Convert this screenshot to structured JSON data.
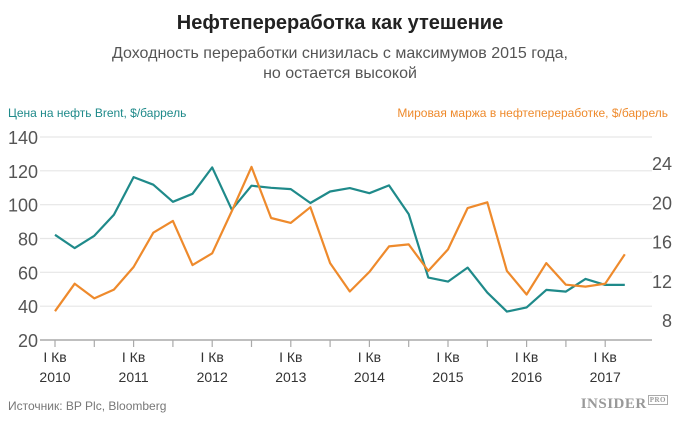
{
  "header": {
    "title": "Нефтепереработка как утешение",
    "subtitle_line1": "Доходность переработки снизилась с максимумов 2015 года,",
    "subtitle_line2": "но остается высокой"
  },
  "footer": {
    "source": "Источник: BP Plc, Bloomberg",
    "logo": "INSIDER",
    "logo_badge": "PRO"
  },
  "chart_data": {
    "type": "line",
    "title": "Нефтепереработка как утешение",
    "x": [
      "2010Q1",
      "2010Q2",
      "2010Q3",
      "2010Q4",
      "2011Q1",
      "2011Q2",
      "2011Q3",
      "2011Q4",
      "2012Q1",
      "2012Q2",
      "2012Q3",
      "2012Q4",
      "2013Q1",
      "2013Q2",
      "2013Q3",
      "2013Q4",
      "2014Q1",
      "2014Q2",
      "2014Q3",
      "2014Q4",
      "2015Q1",
      "2015Q2",
      "2015Q3",
      "2015Q4",
      "2016Q1",
      "2016Q2",
      "2016Q3",
      "2016Q4",
      "2017Q1",
      "2017Q2"
    ],
    "x_tick_labels": [
      {
        "quarter": "I Кв",
        "year": "2010"
      },
      {
        "quarter": "I Кв",
        "year": "2011"
      },
      {
        "quarter": "I Кв",
        "year": "2012"
      },
      {
        "quarter": "I Кв",
        "year": "2013"
      },
      {
        "quarter": "I Кв",
        "year": "2014"
      },
      {
        "quarter": "I Кв",
        "year": "2015"
      },
      {
        "quarter": "I Кв",
        "year": "2016"
      },
      {
        "quarter": "I Кв",
        "year": "2017"
      }
    ],
    "left_axis": {
      "label": "Цена на нефть Brent, $/баррель",
      "ylim": [
        20,
        140
      ],
      "ticks": [
        "140",
        "120",
        "100",
        "80",
        "60",
        "40",
        "20"
      ]
    },
    "right_axis": {
      "label": "Мировая маржа в нефтепереработке, $/баррель",
      "ylim": [
        6,
        26
      ],
      "ticks": [
        "24",
        "20",
        "16",
        "12",
        "8"
      ]
    },
    "series": [
      {
        "name": "Цена на нефть Brent, $/баррель",
        "axis": "left",
        "color": "#1f8a8a",
        "values": [
          82.2,
          74.3,
          81.6,
          94,
          116.3,
          111.8,
          101.7,
          106.4,
          122,
          97,
          111.2,
          110,
          109.2,
          101,
          107.8,
          109.8,
          106.8,
          111.4,
          94.4,
          56.9,
          54.5,
          62.8,
          48,
          36.8,
          39.3,
          49.6,
          48.6,
          56.1,
          52.6,
          52.6
        ]
      },
      {
        "name": "Мировая маржа в нефтепереработке, $/баррель",
        "axis": "right",
        "color": "#ee8a2c",
        "values": [
          8.9,
          11.7,
          10.2,
          11.1,
          13.4,
          16.9,
          18.1,
          13.6,
          14.8,
          19.1,
          23.6,
          18.4,
          17.9,
          19.5,
          13.8,
          10.9,
          12.9,
          15.5,
          15.7,
          13,
          15.2,
          19.4,
          20,
          13,
          10.6,
          13.8,
          11.6,
          11.4,
          11.7,
          14.7
        ]
      }
    ],
    "grid": true
  }
}
